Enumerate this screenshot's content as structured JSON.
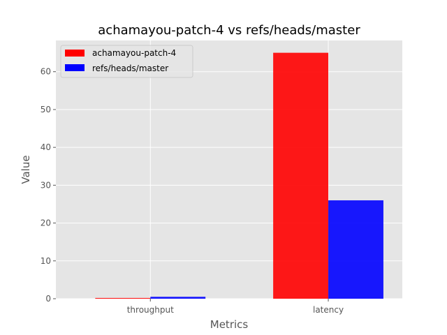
{
  "chart_data": {
    "type": "bar",
    "title": "achamayou-patch-4 vs refs/heads/master",
    "xlabel": "Metrics",
    "ylabel": "Value",
    "categories": [
      "throughput",
      "latency"
    ],
    "series": [
      {
        "name": "achamayou-patch-4",
        "values": [
          0.2,
          65
        ],
        "color": "#ff0000"
      },
      {
        "name": "refs/heads/master",
        "values": [
          0.5,
          26
        ],
        "color": "#0000ff"
      }
    ],
    "ylim": [
      0,
      68.25
    ],
    "yticks": [
      0,
      10,
      20,
      30,
      40,
      50,
      60
    ],
    "grid": true,
    "legend_position": "top-left",
    "background_color": "#e5e5e5",
    "grid_color": "#ffffff"
  }
}
